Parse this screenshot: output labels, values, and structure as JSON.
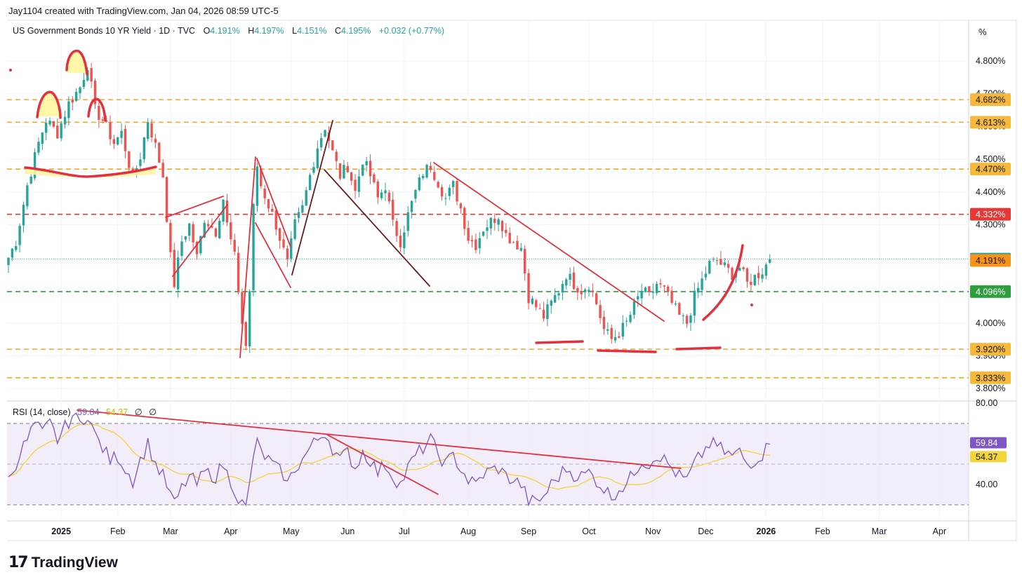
{
  "header": {
    "created_by": "Jay1104 created with TradingView.com, Jan 04, 2026 08:59 UTC-5"
  },
  "legend": {
    "symbol": "US Government Bonds 10 YR Yield · 1D · TVC",
    "o_label": "O",
    "o_value": "4.191%",
    "h_label": "H",
    "h_value": "4.197%",
    "l_label": "L",
    "l_value": "4.151%",
    "c_label": "C",
    "c_value": "4.195%",
    "change": "+0.032 (+0.77%)"
  },
  "unit_button": "%",
  "rsi_legend": {
    "label": "RSI (14, close)",
    "rsi_value": "59.84",
    "ma_value": "54.37",
    "extra1": "∅",
    "extra2": "∅"
  },
  "branding": {
    "mark": "17",
    "text": "TradingView"
  },
  "colors": {
    "up": "#26a69a",
    "down": "#ef5350",
    "orange": "#f5a623",
    "red_dash": "#e53935",
    "green_dash": "#2e9e3e",
    "drawing": "#e3303e",
    "dark_line": "#6b1a1a",
    "rsi": "#7e57c2",
    "rsi_ma": "#f2d43b",
    "rsi_band": "#ede7f6"
  },
  "chart_data": [
    {
      "type": "candlestick",
      "title": "US Government Bonds 10 YR Yield · 1D · TVC",
      "y_tick_labels": [
        "4.800%",
        "4.700%",
        "4.600%",
        "4.500%",
        "4.400%",
        "4.300%",
        "4.000%",
        "3.900%",
        "3.800%"
      ],
      "y_ticks": [
        4.8,
        4.7,
        4.6,
        4.5,
        4.4,
        4.3,
        4.0,
        3.9,
        3.8
      ],
      "ylim": [
        3.76,
        4.93
      ],
      "x_tick_labels": [
        "2025",
        "Feb",
        "Mar",
        "Apr",
        "May",
        "Jun",
        "Jul",
        "Aug",
        "Sep",
        "Oct",
        "Nov",
        "Dec",
        "2026",
        "Feb",
        "Mar",
        "Apr"
      ],
      "grid": true,
      "last_price": 4.195,
      "price_labels": [
        {
          "value": 4.682,
          "text": "4.682%",
          "style": "orange"
        },
        {
          "value": 4.613,
          "text": "4.613%",
          "style": "orange"
        },
        {
          "value": 4.47,
          "text": "4.470%",
          "style": "orange"
        },
        {
          "value": 4.332,
          "text": "4.332%",
          "style": "red"
        },
        {
          "value": 4.195,
          "text": "4.195%",
          "style": "last"
        },
        {
          "value": 4.191,
          "text": "4.191%",
          "style": "prev"
        },
        {
          "value": 4.096,
          "text": "4.096%",
          "style": "green"
        },
        {
          "value": 3.92,
          "text": "3.920%",
          "style": "orange"
        },
        {
          "value": 3.833,
          "text": "3.833%",
          "style": "orange"
        }
      ],
      "horizontal_levels": [
        {
          "value": 4.682,
          "style": "orange"
        },
        {
          "value": 4.613,
          "style": "orange"
        },
        {
          "value": 4.47,
          "style": "orange"
        },
        {
          "value": 4.332,
          "style": "red"
        },
        {
          "value": 4.096,
          "style": "green"
        },
        {
          "value": 3.92,
          "style": "orange"
        },
        {
          "value": 3.833,
          "style": "orange"
        }
      ],
      "close_anchors": [
        [
          0,
          4.2
        ],
        [
          2,
          4.25
        ],
        [
          5,
          4.42
        ],
        [
          8,
          4.55
        ],
        [
          10,
          4.62
        ],
        [
          13,
          4.58
        ],
        [
          16,
          4.67
        ],
        [
          19,
          4.72
        ],
        [
          21,
          4.79
        ],
        [
          23,
          4.65
        ],
        [
          25,
          4.62
        ],
        [
          28,
          4.55
        ],
        [
          30,
          4.58
        ],
        [
          33,
          4.44
        ],
        [
          35,
          4.51
        ],
        [
          37,
          4.62
        ],
        [
          39,
          4.54
        ],
        [
          41,
          4.45
        ],
        [
          43,
          4.2
        ],
        [
          44,
          4.12
        ],
        [
          46,
          4.25
        ],
        [
          48,
          4.3
        ],
        [
          50,
          4.2
        ],
        [
          52,
          4.32
        ],
        [
          55,
          4.28
        ],
        [
          57,
          4.38
        ],
        [
          58,
          4.3
        ],
        [
          60,
          4.2
        ],
        [
          61,
          4.1
        ],
        [
          62,
          4.0
        ],
        [
          63,
          3.93
        ],
        [
          64,
          4.1
        ],
        [
          65,
          4.35
        ],
        [
          66,
          4.48
        ],
        [
          67,
          4.42
        ],
        [
          69,
          4.36
        ],
        [
          71,
          4.3
        ],
        [
          73,
          4.22
        ],
        [
          74,
          4.18
        ],
        [
          76,
          4.3
        ],
        [
          78,
          4.35
        ],
        [
          80,
          4.45
        ],
        [
          82,
          4.54
        ],
        [
          84,
          4.6
        ],
        [
          86,
          4.52
        ],
        [
          88,
          4.45
        ],
        [
          90,
          4.48
        ],
        [
          92,
          4.4
        ],
        [
          94,
          4.5
        ],
        [
          96,
          4.45
        ],
        [
          98,
          4.38
        ],
        [
          100,
          4.42
        ],
        [
          102,
          4.3
        ],
        [
          104,
          4.25
        ],
        [
          106,
          4.33
        ],
        [
          108,
          4.4
        ],
        [
          110,
          4.46
        ],
        [
          112,
          4.48
        ],
        [
          114,
          4.43
        ],
        [
          116,
          4.38
        ],
        [
          118,
          4.42
        ],
        [
          120,
          4.35
        ],
        [
          122,
          4.26
        ],
        [
          124,
          4.24
        ],
        [
          126,
          4.29
        ],
        [
          128,
          4.31
        ],
        [
          130,
          4.33
        ],
        [
          132,
          4.27
        ],
        [
          134,
          4.25
        ],
        [
          136,
          4.23
        ],
        [
          138,
          4.08
        ],
        [
          140,
          4.05
        ],
        [
          142,
          4.02
        ],
        [
          144,
          4.06
        ],
        [
          146,
          4.1
        ],
        [
          148,
          4.15
        ],
        [
          150,
          4.12
        ],
        [
          152,
          4.1
        ],
        [
          154,
          4.12
        ],
        [
          156,
          4.06
        ],
        [
          158,
          3.98
        ],
        [
          160,
          3.95
        ],
        [
          162,
          3.97
        ],
        [
          164,
          4.0
        ],
        [
          166,
          4.05
        ],
        [
          168,
          4.1
        ],
        [
          170,
          4.08
        ],
        [
          172,
          4.12
        ],
        [
          174,
          4.1
        ],
        [
          176,
          4.06
        ],
        [
          178,
          4.02
        ],
        [
          180,
          4.0
        ],
        [
          182,
          4.08
        ],
        [
          184,
          4.13
        ],
        [
          186,
          4.18
        ],
        [
          188,
          4.19
        ],
        [
          190,
          4.17
        ],
        [
          192,
          4.15
        ],
        [
          194,
          4.17
        ],
        [
          196,
          4.12
        ],
        [
          198,
          4.14
        ],
        [
          200,
          4.16
        ],
        [
          202,
          4.195
        ]
      ],
      "volatility": 0.028
    },
    {
      "type": "line",
      "title": "RSI (14, close)",
      "y_tick_labels": [
        "80.00",
        "40.00"
      ],
      "y_ticks": [
        80,
        40
      ],
      "ylim": [
        23,
        83
      ],
      "bands": [
        70,
        50,
        30
      ],
      "series": [
        {
          "name": "RSI",
          "last": 59.84
        },
        {
          "name": "RSI-MA",
          "last": 54.37
        }
      ],
      "value_labels": [
        {
          "value": 59.84,
          "text": "59.84",
          "style": "rsi"
        },
        {
          "value": 54.37,
          "text": "54.37",
          "style": "ma"
        }
      ],
      "rsi_anchors": [
        [
          0,
          42
        ],
        [
          3,
          55
        ],
        [
          5,
          62
        ],
        [
          7,
          70
        ],
        [
          9,
          65
        ],
        [
          11,
          70
        ],
        [
          13,
          62
        ],
        [
          15,
          68
        ],
        [
          17,
          74
        ],
        [
          19,
          70
        ],
        [
          21,
          75
        ],
        [
          23,
          64
        ],
        [
          25,
          58
        ],
        [
          27,
          52
        ],
        [
          29,
          54
        ],
        [
          31,
          48
        ],
        [
          33,
          42
        ],
        [
          35,
          52
        ],
        [
          37,
          60
        ],
        [
          39,
          50
        ],
        [
          41,
          44
        ],
        [
          43,
          35
        ],
        [
          44,
          30
        ],
        [
          46,
          38
        ],
        [
          48,
          44
        ],
        [
          50,
          40
        ],
        [
          52,
          46
        ],
        [
          55,
          44
        ],
        [
          57,
          50
        ],
        [
          58,
          45
        ],
        [
          60,
          38
        ],
        [
          61,
          33
        ],
        [
          63,
          28
        ],
        [
          64,
          40
        ],
        [
          65,
          55
        ],
        [
          66,
          60
        ],
        [
          67,
          56
        ],
        [
          69,
          52
        ],
        [
          71,
          48
        ],
        [
          73,
          45
        ],
        [
          74,
          40
        ],
        [
          76,
          48
        ],
        [
          78,
          52
        ],
        [
          80,
          58
        ],
        [
          82,
          62
        ],
        [
          84,
          66
        ],
        [
          86,
          58
        ],
        [
          88,
          52
        ],
        [
          90,
          56
        ],
        [
          92,
          48
        ],
        [
          94,
          56
        ],
        [
          96,
          52
        ],
        [
          98,
          46
        ],
        [
          100,
          50
        ],
        [
          102,
          44
        ],
        [
          104,
          40
        ],
        [
          106,
          48
        ],
        [
          108,
          54
        ],
        [
          110,
          58
        ],
        [
          112,
          62
        ],
        [
          114,
          55
        ],
        [
          116,
          50
        ],
        [
          118,
          54
        ],
        [
          120,
          48
        ],
        [
          122,
          42
        ],
        [
          124,
          40
        ],
        [
          126,
          45
        ],
        [
          128,
          47
        ],
        [
          130,
          48
        ],
        [
          132,
          44
        ],
        [
          134,
          42
        ],
        [
          136,
          40
        ],
        [
          138,
          32
        ],
        [
          140,
          31
        ],
        [
          142,
          34
        ],
        [
          144,
          40
        ],
        [
          146,
          44
        ],
        [
          148,
          48
        ],
        [
          150,
          45
        ],
        [
          152,
          44
        ],
        [
          154,
          46
        ],
        [
          156,
          42
        ],
        [
          158,
          38
        ],
        [
          160,
          34
        ],
        [
          162,
          38
        ],
        [
          164,
          40
        ],
        [
          166,
          46
        ],
        [
          168,
          52
        ],
        [
          170,
          50
        ],
        [
          172,
          55
        ],
        [
          174,
          52
        ],
        [
          176,
          48
        ],
        [
          178,
          44
        ],
        [
          180,
          42
        ],
        [
          182,
          50
        ],
        [
          184,
          55
        ],
        [
          186,
          60
        ],
        [
          188,
          59
        ],
        [
          190,
          56
        ],
        [
          192,
          54
        ],
        [
          194,
          56
        ],
        [
          196,
          50
        ],
        [
          198,
          52
        ],
        [
          200,
          55
        ],
        [
          202,
          59.84
        ]
      ],
      "volatility": 4
    }
  ]
}
